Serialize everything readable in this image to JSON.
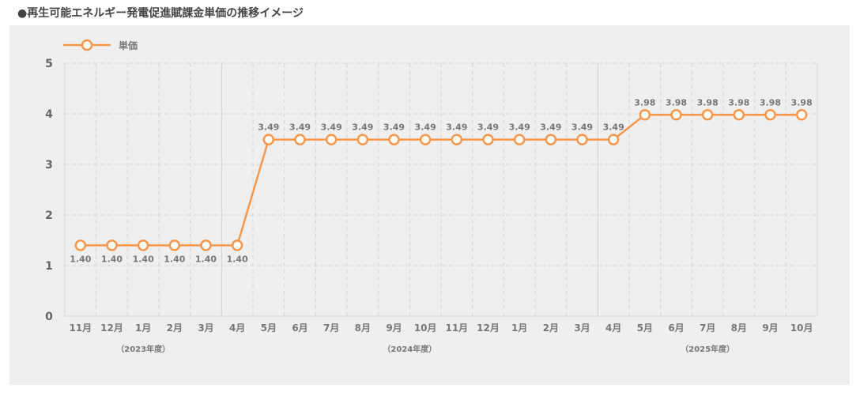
{
  "title": "●再生可能エネルギー発電促進賦課金単価の推移イメージ",
  "chart_data": {
    "type": "line",
    "title": "再生可能エネルギー発電促進賦課金単価の推移イメージ",
    "legend": {
      "label": "単価",
      "placement": "top-left"
    },
    "categories": [
      "11月",
      "12月",
      "1月",
      "2月",
      "3月",
      "4月",
      "5月",
      "6月",
      "7月",
      "8月",
      "9月",
      "10月",
      "11月",
      "12月",
      "1月",
      "2月",
      "3月",
      "4月",
      "5月",
      "6月",
      "7月",
      "8月",
      "9月",
      "10月"
    ],
    "series": [
      {
        "name": "単価",
        "values": [
          1.4,
          1.4,
          1.4,
          1.4,
          1.4,
          1.4,
          3.49,
          3.49,
          3.49,
          3.49,
          3.49,
          3.49,
          3.49,
          3.49,
          3.49,
          3.49,
          3.49,
          3.49,
          3.98,
          3.98,
          3.98,
          3.98,
          3.98,
          3.98
        ]
      }
    ],
    "year_groups": [
      {
        "label": "（2023年度）",
        "start": 0,
        "end": 4
      },
      {
        "label": "（2024年度）",
        "start": 5,
        "end": 16
      },
      {
        "label": "（2025年度）",
        "start": 17,
        "end": 23
      }
    ],
    "yticks": [
      "0",
      "1",
      "2",
      "3",
      "4",
      "5"
    ],
    "ylim": [
      0,
      5
    ],
    "grid": true,
    "color": "#f7974b"
  }
}
